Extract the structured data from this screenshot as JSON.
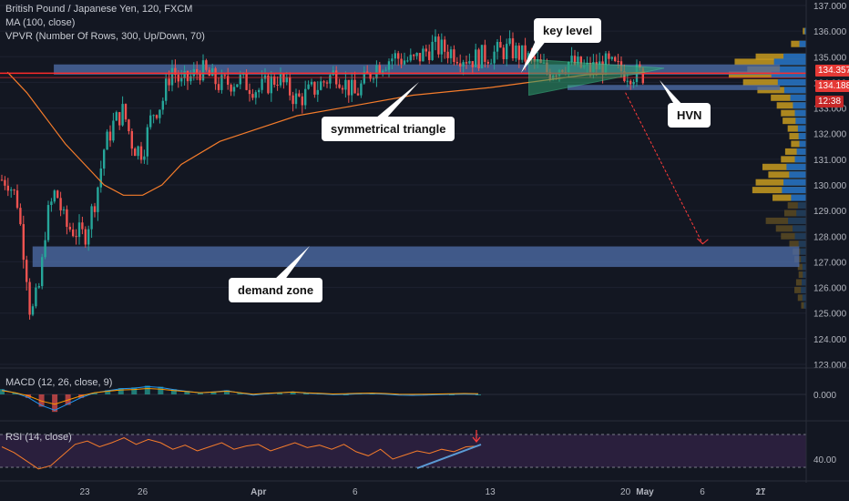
{
  "legend": {
    "symbol": "British Pound / Japanese Yen, 120, FXCM",
    "ma": "MA (100, close)",
    "vpvr": "VPVR (Number Of Rows, 300, Up/Down, 70)",
    "macd": "MACD (12, 26, close, 9)",
    "rsi": "RSI (14, close)"
  },
  "callouts": {
    "key_level": "key level",
    "symmetrical_triangle": "symmetrical triangle",
    "hvn": "HVN",
    "demand_zone": "demand zone"
  },
  "price_tags": {
    "upper": "134.357",
    "lower": "134.188",
    "timer": "12:38"
  },
  "colors": {
    "background": "#131722",
    "up_candle": "#26a69a",
    "down_candle": "#ef5350",
    "ma_line": "#f57c2b",
    "zone": "#4c6aa4",
    "resistance_line": "#ff2a2a",
    "rsi_line": "#f57c2b",
    "rsi_band": "#2a1f3d",
    "projection_arrow": "#ff3b3b"
  },
  "chart_data": [
    {
      "type": "candlestick",
      "title": "British Pound / Japanese Yen, 120, FXCM",
      "y_axis_ticks": [
        "137.000",
        "136.000",
        "135.000",
        "134.000",
        "133.000",
        "132.000",
        "131.000",
        "130.000",
        "129.000",
        "128.000",
        "127.000",
        "126.000",
        "125.000",
        "124.000",
        "123.000"
      ],
      "ylim": [
        123.0,
        137.0
      ],
      "x_axis_ticks": [
        "23",
        "26",
        "Apr",
        "6",
        "13",
        "20",
        "27",
        "May",
        "6",
        "11"
      ],
      "close_path": [
        {
          "x": "19",
          "y": 130.2
        },
        {
          "x": "19.5",
          "y": 129.4
        },
        {
          "x": "20",
          "y": 126.5
        },
        {
          "x": "20.2",
          "y": 124.8
        },
        {
          "x": "20.7",
          "y": 126.2
        },
        {
          "x": "21",
          "y": 128.6
        },
        {
          "x": "21.5",
          "y": 129.8
        },
        {
          "x": "22",
          "y": 128.4
        },
        {
          "x": "23",
          "y": 128.0
        },
        {
          "x": "23.6",
          "y": 129.6
        },
        {
          "x": "24",
          "y": 131.4
        },
        {
          "x": "24.5",
          "y": 132.4
        },
        {
          "x": "25",
          "y": 132.9
        },
        {
          "x": "25.5",
          "y": 131.5
        },
        {
          "x": "26",
          "y": 131.3
        },
        {
          "x": "26.5",
          "y": 132.8
        },
        {
          "x": "27",
          "y": 133.2
        },
        {
          "x": "27.5",
          "y": 134.6
        },
        {
          "x": "28",
          "y": 133.9
        },
        {
          "x": "29",
          "y": 134.5
        },
        {
          "x": "30",
          "y": 133.9
        },
        {
          "x": "31",
          "y": 134.1
        },
        {
          "x": "Apr 1",
          "y": 133.7
        },
        {
          "x": "Apr 2",
          "y": 134.2
        },
        {
          "x": "Apr 3",
          "y": 133.3
        },
        {
          "x": "Apr 4",
          "y": 133.8
        },
        {
          "x": "Apr 5",
          "y": 134.4
        },
        {
          "x": "Apr 6",
          "y": 133.5
        },
        {
          "x": "Apr 7",
          "y": 134.6
        },
        {
          "x": "Apr 8",
          "y": 135.0
        },
        {
          "x": "Apr 9",
          "y": 134.8
        },
        {
          "x": "Apr 10",
          "y": 135.4
        },
        {
          "x": "Apr 11",
          "y": 135.2
        },
        {
          "x": "Apr 12",
          "y": 134.9
        },
        {
          "x": "Apr 13",
          "y": 135.1
        },
        {
          "x": "Apr 14",
          "y": 135.3
        },
        {
          "x": "Apr 15",
          "y": 134.9
        },
        {
          "x": "Apr 16",
          "y": 134.4
        },
        {
          "x": "Apr 17",
          "y": 134.8
        },
        {
          "x": "Apr 18",
          "y": 134.5
        },
        {
          "x": "Apr 19",
          "y": 134.7
        },
        {
          "x": "Apr 20",
          "y": 134.4
        },
        {
          "x": "Apr 21",
          "y": 134.3
        }
      ],
      "ma_path": [
        {
          "x": "19",
          "y": 134.4
        },
        {
          "x": "20",
          "y": 133.6
        },
        {
          "x": "21",
          "y": 132.6
        },
        {
          "x": "22",
          "y": 131.6
        },
        {
          "x": "23",
          "y": 130.8
        },
        {
          "x": "24",
          "y": 130.0
        },
        {
          "x": "25",
          "y": 129.6
        },
        {
          "x": "26",
          "y": 129.6
        },
        {
          "x": "27",
          "y": 130.0
        },
        {
          "x": "28",
          "y": 130.8
        },
        {
          "x": "30",
          "y": 131.7
        },
        {
          "x": "Apr 1",
          "y": 132.2
        },
        {
          "x": "Apr 3",
          "y": 132.7
        },
        {
          "x": "Apr 6",
          "y": 133.1
        },
        {
          "x": "Apr 9",
          "y": 133.5
        },
        {
          "x": "Apr 13",
          "y": 133.8
        },
        {
          "x": "Apr 16",
          "y": 134.1
        },
        {
          "x": "Apr 18",
          "y": 134.3
        },
        {
          "x": "Apr 21",
          "y": 134.4
        }
      ],
      "annotations": {
        "key_level_zone": {
          "y_from": 134.3,
          "y_to": 134.7,
          "x_from": "21.4",
          "x_to": "Apr 28"
        },
        "demand_zone": {
          "y_from": 126.8,
          "y_to": 127.6,
          "x_from": "20.3",
          "x_to": "Apr 29"
        },
        "small_zone": {
          "y_from": 133.7,
          "y_to": 133.9,
          "x_from": "Apr 17",
          "x_to": "Apr 28"
        },
        "resistance_line": 134.357,
        "resistance_line_2": 134.188,
        "triangle": [
          {
            "x": "Apr 15",
            "y": 134.9
          },
          {
            "x": "Apr 22",
            "y": 134.55
          },
          {
            "x": "Apr 15",
            "y": 133.5
          }
        ],
        "projection": [
          {
            "x": "Apr 20",
            "y": 133.6
          },
          {
            "x": "Apr 24",
            "y": 127.7
          }
        ]
      }
    },
    {
      "type": "bar",
      "title": "VPVR (Number Of Rows, 300, Up/Down, 70)",
      "orientation": "horizontal",
      "y_values": [
        136.0,
        135.5,
        135.0,
        134.8,
        134.5,
        134.3,
        134.0,
        133.7,
        133.4,
        133.1,
        132.8,
        132.5,
        132.2,
        131.9,
        131.6,
        131.3,
        131.0,
        130.7,
        130.4,
        130.1,
        129.8,
        129.5,
        129.2,
        128.9,
        128.6,
        128.3,
        128.0,
        127.7,
        127.4,
        127.1,
        126.8,
        126.5,
        126.2,
        125.9,
        125.6,
        125.3
      ],
      "volumes": [
        4,
        18,
        60,
        85,
        70,
        92,
        75,
        58,
        42,
        35,
        30,
        28,
        22,
        20,
        18,
        25,
        30,
        52,
        45,
        60,
        64,
        40,
        22,
        26,
        48,
        36,
        30,
        20,
        16,
        14,
        10,
        9,
        12,
        14,
        10,
        6
      ]
    },
    {
      "type": "line",
      "title": "MACD (12, 26, close, 9)",
      "y_axis_ticks": [
        "0.000"
      ],
      "ylim": [
        -0.6,
        0.6
      ],
      "values": [
        0.15,
        0.05,
        -0.1,
        -0.35,
        -0.5,
        -0.3,
        -0.1,
        0.05,
        0.12,
        0.18,
        0.2,
        0.25,
        0.22,
        0.15,
        0.1,
        0.05,
        0.08,
        0.12,
        0.05,
        -0.02,
        0.02,
        0.05,
        0.08,
        0.04,
        0.02,
        -0.01,
        0.0,
        0.02,
        0.03,
        0.01,
        -0.02,
        -0.03,
        -0.02,
        -0.01,
        0.0,
        0.01,
        0.0
      ]
    },
    {
      "type": "line",
      "title": "RSI (14, close)",
      "y_axis_ticks": [
        "40.00"
      ],
      "ylim": [
        20,
        80
      ],
      "values": [
        55,
        48,
        38,
        28,
        32,
        45,
        58,
        62,
        55,
        60,
        66,
        58,
        64,
        60,
        52,
        57,
        50,
        55,
        60,
        52,
        56,
        58,
        50,
        55,
        60,
        54,
        57,
        52,
        58,
        49,
        44,
        52,
        40,
        45,
        50,
        47,
        52,
        49,
        55,
        56
      ]
    }
  ]
}
